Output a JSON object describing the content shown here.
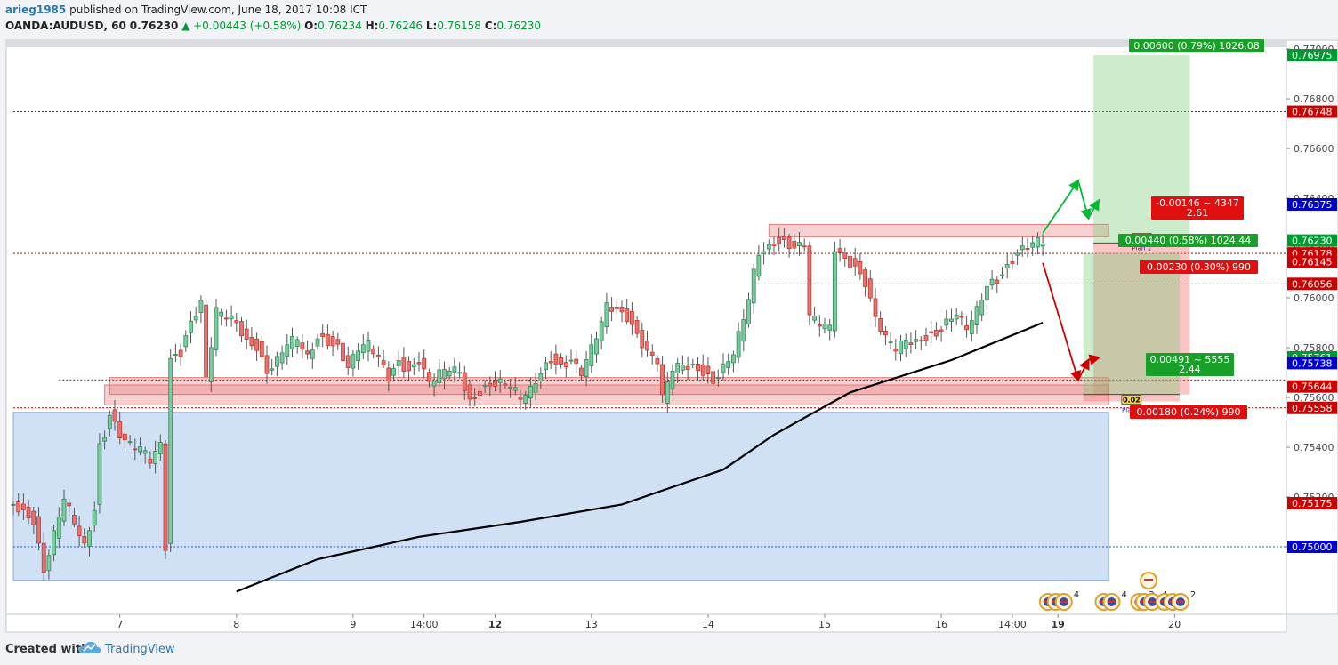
{
  "header": {
    "author": "arieg1985",
    "published_text": "published on TradingView.com, June 18, 2017 10:08 ICT",
    "symbol": "OANDA:AUDUSD, 60",
    "last": "0.76230",
    "change": "▲ +0.00443 (+0.58%)",
    "o_label": "O:",
    "o_value": "0.76234",
    "h_label": "H:",
    "h_value": "0.76246",
    "l_label": "L:",
    "l_value": "0.76158",
    "c_label": "C:",
    "c_value": "0.76230"
  },
  "footer": {
    "created_with": "Created with",
    "brand": "TradingView"
  },
  "colors": {
    "up": "#26a69a",
    "down": "#ef5350",
    "ma": "#000000",
    "bg": "#ffffff"
  },
  "chart_data": {
    "type": "candlestick",
    "symbol": "OANDA:AUDUSD",
    "interval": "60",
    "y_axis": {
      "range": [
        0.7482,
        0.7712
      ],
      "ticks": [
        "0.77000",
        "0.76800",
        "0.76600",
        "0.76400",
        "0.76200",
        "0.76000",
        "0.75800",
        "0.75600",
        "0.75400",
        "0.75200",
        "0.75000"
      ]
    },
    "x_axis": {
      "bar_range": [
        0,
        213
      ],
      "ticks": [
        {
          "bar": 21,
          "label": "7",
          "bold": false
        },
        {
          "bar": 44,
          "label": "8",
          "bold": false
        },
        {
          "bar": 67,
          "label": "9",
          "bold": false
        },
        {
          "bar": 81,
          "label": "14:00",
          "bold": false
        },
        {
          "bar": 95,
          "label": "12",
          "bold": true
        },
        {
          "bar": 114,
          "label": "13",
          "bold": false
        },
        {
          "bar": 137,
          "label": "14",
          "bold": false
        },
        {
          "bar": 160,
          "label": "15",
          "bold": false
        },
        {
          "bar": 183,
          "label": "16",
          "bold": false
        },
        {
          "bar": 197,
          "label": "14:00",
          "bold": false
        },
        {
          "bar": 206,
          "label": "19",
          "bold": true
        },
        {
          "bar": 229,
          "label": "20",
          "bold": false
        }
      ]
    },
    "ohlc_anchors": [
      [
        0,
        0.7517
      ],
      [
        4,
        0.751
      ],
      [
        6,
        0.749
      ],
      [
        8,
        0.7505
      ],
      [
        10,
        0.752
      ],
      [
        12,
        0.751
      ],
      [
        14,
        0.75
      ],
      [
        16,
        0.7515
      ],
      [
        17,
        0.754
      ],
      [
        18,
        0.7545
      ],
      [
        19,
        0.7553
      ],
      [
        21,
        0.7545
      ],
      [
        23,
        0.7541
      ],
      [
        25,
        0.754
      ],
      [
        27,
        0.7535
      ],
      [
        29,
        0.7541
      ],
      [
        30,
        0.75
      ],
      [
        31,
        0.7575
      ],
      [
        33,
        0.7578
      ],
      [
        35,
        0.759
      ],
      [
        37,
        0.7598
      ],
      [
        38,
        0.7568
      ],
      [
        40,
        0.7595
      ],
      [
        42,
        0.7593
      ],
      [
        44,
        0.759
      ],
      [
        46,
        0.7582
      ],
      [
        48,
        0.758
      ],
      [
        50,
        0.757
      ],
      [
        52,
        0.7575
      ],
      [
        54,
        0.7582
      ],
      [
        56,
        0.7584
      ],
      [
        58,
        0.7576
      ],
      [
        60,
        0.7584
      ],
      [
        62,
        0.7582
      ],
      [
        64,
        0.758
      ],
      [
        66,
        0.7572
      ],
      [
        68,
        0.758
      ],
      [
        70,
        0.7582
      ],
      [
        72,
        0.7576
      ],
      [
        74,
        0.7568
      ],
      [
        76,
        0.7574
      ],
      [
        78,
        0.757
      ],
      [
        80,
        0.7575
      ],
      [
        82,
        0.7566
      ],
      [
        84,
        0.757
      ],
      [
        86,
        0.7572
      ],
      [
        88,
        0.757
      ],
      [
        90,
        0.7558
      ],
      [
        92,
        0.7562
      ],
      [
        94,
        0.7565
      ],
      [
        96,
        0.7566
      ],
      [
        98,
        0.7565
      ],
      [
        100,
        0.756
      ],
      [
        102,
        0.7563
      ],
      [
        104,
        0.757
      ],
      [
        106,
        0.7575
      ],
      [
        108,
        0.7572
      ],
      [
        110,
        0.7575
      ],
      [
        112,
        0.757
      ],
      [
        114,
        0.758
      ],
      [
        116,
        0.759
      ],
      [
        117,
        0.7597
      ],
      [
        119,
        0.7595
      ],
      [
        121,
        0.7592
      ],
      [
        123,
        0.7585
      ],
      [
        125,
        0.7578
      ],
      [
        127,
        0.7575
      ],
      [
        128,
        0.756
      ],
      [
        130,
        0.7572
      ],
      [
        132,
        0.7573
      ],
      [
        134,
        0.7572
      ],
      [
        136,
        0.757
      ],
      [
        138,
        0.7566
      ],
      [
        140,
        0.7572
      ],
      [
        142,
        0.7578
      ],
      [
        144,
        0.7592
      ],
      [
        145,
        0.76
      ],
      [
        146,
        0.761
      ],
      [
        147,
        0.7618
      ],
      [
        149,
        0.762
      ],
      [
        150,
        0.7622
      ],
      [
        152,
        0.7622
      ],
      [
        154,
        0.762
      ],
      [
        156,
        0.7622
      ],
      [
        157,
        0.7593
      ],
      [
        159,
        0.759
      ],
      [
        161,
        0.7588
      ],
      [
        162,
        0.762
      ],
      [
        164,
        0.7615
      ],
      [
        166,
        0.7612
      ],
      [
        168,
        0.7606
      ],
      [
        170,
        0.7592
      ],
      [
        172,
        0.7584
      ],
      [
        174,
        0.758
      ],
      [
        176,
        0.7583
      ],
      [
        178,
        0.7582
      ],
      [
        180,
        0.7584
      ],
      [
        182,
        0.7585
      ],
      [
        184,
        0.759
      ],
      [
        186,
        0.7594
      ],
      [
        188,
        0.7588
      ],
      [
        190,
        0.7595
      ],
      [
        192,
        0.7605
      ],
      [
        194,
        0.7607
      ],
      [
        196,
        0.7612
      ],
      [
        198,
        0.7618
      ],
      [
        200,
        0.7621
      ],
      [
        202,
        0.7623
      ],
      [
        203,
        0.7623
      ]
    ],
    "ma_anchors": [
      [
        44,
        0.7482
      ],
      [
        60,
        0.7495
      ],
      [
        80,
        0.7504
      ],
      [
        100,
        0.751
      ],
      [
        120,
        0.7517
      ],
      [
        140,
        0.7531
      ],
      [
        150,
        0.7545
      ],
      [
        165,
        0.7562
      ],
      [
        185,
        0.7575
      ],
      [
        203,
        0.759
      ]
    ],
    "zones": [
      {
        "bar_from": 0,
        "bar_to": 216,
        "top": 0.7554,
        "bottom": 0.74865,
        "color": "blue"
      },
      {
        "bar_from": 18,
        "bar_to": 216,
        "top": 0.7565,
        "bottom": 0.7557,
        "color": "red"
      },
      {
        "bar_from": 19,
        "bar_to": 216,
        "top": 0.7568,
        "bottom": 0.75612,
        "color": "red"
      },
      {
        "bar_from": 149,
        "bar_to": 216,
        "top": 0.76295,
        "bottom": 0.76245,
        "color": "red"
      }
    ],
    "horizontal_lines": [
      {
        "price": 0.76748,
        "from_bar": 0,
        "style": "dotted",
        "color": "red"
      },
      {
        "price": 0.76178,
        "from_bar": 0,
        "style": "dotted",
        "color": "red"
      },
      {
        "price": 0.7567,
        "from_bar": 9,
        "style": "dotted",
        "color": "red"
      },
      {
        "price": 0.75558,
        "from_bar": 0,
        "style": "dotted",
        "color": "red"
      },
      {
        "price": 0.75,
        "from_bar": 0,
        "style": "dotted",
        "color": "blue"
      },
      {
        "price": 0.76056,
        "from_bar": 146,
        "style": "dotted",
        "color": "green"
      }
    ],
    "positions": [
      {
        "name": "long-1",
        "bar_from": 213,
        "bar_to": 232,
        "entry": 0.7622,
        "target": 0.76975,
        "stop": 0.75612,
        "target_label": "0.00600 (0.79%) 1026.08",
        "entry_label": "0.00440 (0.58%) 1024.44",
        "stop_label": "-0.00146 ~ 4347",
        "stop_sub": "2.61",
        "qty": "0.02",
        "plan": "Plan 1"
      },
      {
        "name": "long-2",
        "bar_from": 211,
        "bar_to": 230,
        "entry": 0.75612,
        "target": 0.7618,
        "stop": 0.75584,
        "target_label": "0.00230 (0.30%) 990",
        "entry_label": "0.00491 ~ 5555",
        "entry_sub": "2.44",
        "stop_label": "0.00180 (0.24%) 990",
        "qty": "0.02",
        "plan": "Plan 1"
      }
    ],
    "arrows": [
      {
        "name": "up-path",
        "color": "#00bb33",
        "points": [
          [
            203,
            0.7626
          ],
          [
            210,
            0.7647
          ],
          [
            212,
            0.7632
          ],
          [
            214,
            0.7639
          ]
        ]
      },
      {
        "name": "down-path",
        "color": "#cc0000",
        "points": [
          [
            203,
            0.7614
          ],
          [
            210,
            0.7567
          ],
          [
            212,
            0.7575
          ],
          [
            214,
            0.7576
          ]
        ]
      }
    ],
    "price_labels": [
      {
        "price": 0.76975,
        "text": "0.76975",
        "bg": "#009933",
        "fg": "#ffffff"
      },
      {
        "price": 0.76748,
        "text": "0.76748",
        "bg": "#cc0000",
        "fg": "#ffffff"
      },
      {
        "price": 0.76375,
        "text": "0.76375",
        "bg": "#0000cc",
        "fg": "#ffffff"
      },
      {
        "price": 0.7623,
        "text": "0.76230",
        "bg": "#009933",
        "fg": "#ffffff"
      },
      {
        "price": 0.76178,
        "text": "0.76178",
        "bg": "#cc0000",
        "fg": "#ffffff"
      },
      {
        "price": 0.76145,
        "text": "0.76145",
        "bg": "#cc0000",
        "fg": "#ffffff"
      },
      {
        "price": 0.76056,
        "text": "0.76056",
        "bg": "#cc0000",
        "fg": "#ffffff"
      },
      {
        "price": 0.75761,
        "text": "0.75761",
        "bg": "#009933",
        "fg": "#ffffff"
      },
      {
        "price": 0.75738,
        "text": "0.75738",
        "bg": "#0000cc",
        "fg": "#ffffff"
      },
      {
        "price": 0.75644,
        "text": "0.75644",
        "bg": "#cc0000",
        "fg": "#ffffff"
      },
      {
        "price": 0.75558,
        "text": "0.75558",
        "bg": "#cc0000",
        "fg": "#ffffff"
      },
      {
        "price": 0.75175,
        "text": "0.75175",
        "bg": "#cc0000",
        "fg": "#ffffff"
      },
      {
        "price": 0.75,
        "text": "0.75000",
        "bg": "#0000cc",
        "fg": "#ffffff"
      }
    ],
    "events": [
      {
        "bar": 204,
        "count": "4",
        "icons": 3
      },
      {
        "bar": 215,
        "count": "4",
        "icons": 2
      },
      {
        "bar": 222,
        "count": "2",
        "icons": 1
      },
      {
        "bar": 223,
        "count": "4",
        "icons": 2
      },
      {
        "bar": 227,
        "count": "2",
        "icons": 3
      }
    ],
    "event_stack": [
      {
        "bar": 223
      }
    ]
  }
}
